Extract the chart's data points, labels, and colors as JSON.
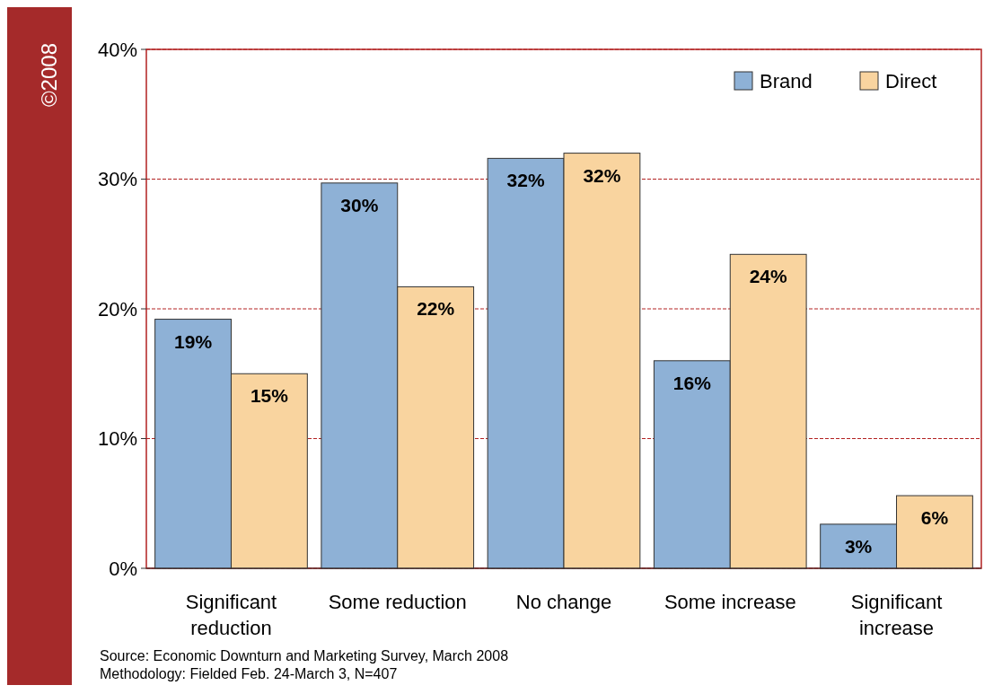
{
  "chart_data": {
    "type": "bar",
    "categories": [
      "Significant reduction",
      "Some reduction",
      "No change",
      "Some increase",
      "Significant increase"
    ],
    "series": [
      {
        "name": "Brand",
        "color": "#8eb1d6",
        "values": [
          19.2,
          29.7,
          31.6,
          16,
          3.4
        ],
        "value_labels": [
          "19%",
          "30%",
          "32%",
          "16%",
          "3%"
        ]
      },
      {
        "name": "Direct",
        "color": "#f9d49f",
        "values": [
          15,
          21.7,
          32,
          24.2,
          5.6
        ],
        "value_labels": [
          "15%",
          "22%",
          "32%",
          "24%",
          "6%"
        ]
      }
    ],
    "ylim": [
      0,
      40
    ],
    "yticks": [
      {
        "value": 0,
        "label": "0%"
      },
      {
        "value": 10,
        "label": "10%"
      },
      {
        "value": 20,
        "label": "20%"
      },
      {
        "value": 30,
        "label": "30%"
      },
      {
        "value": 40,
        "label": "40%"
      }
    ],
    "grid": "y",
    "legend": "top right",
    "annotations": [
      "©2008",
      "Source: Economic Downturn and Marketing Survey, March 2008",
      "Methodology: Fielded Feb. 24-March 3, N=407"
    ]
  }
}
